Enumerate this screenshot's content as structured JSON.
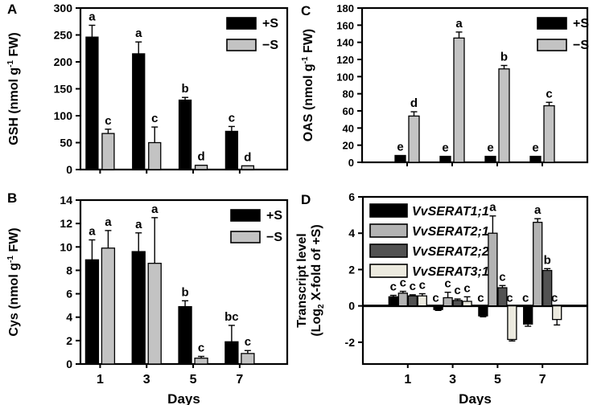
{
  "figure": {
    "background": "#ffffff",
    "panels": [
      {
        "letter": "A"
      },
      {
        "letter": "B"
      },
      {
        "letter": "C"
      },
      {
        "letter": "D"
      }
    ]
  },
  "chart_data": [
    {
      "panel": "A",
      "type": "bar",
      "ylabel": "GSH (nmol g^-1 FW)",
      "xlabel": "",
      "categories": [
        "1",
        "3",
        "5",
        "7"
      ],
      "show_x_tick_labels": false,
      "ylim": [
        0,
        300
      ],
      "yticks": [
        0,
        50,
        100,
        150,
        200,
        250,
        300
      ],
      "legend": {
        "position": "top-right",
        "italic": false
      },
      "series": [
        {
          "name": "+S",
          "color": "#000000",
          "values": [
            246,
            215,
            129,
            71
          ],
          "errors": [
            22,
            22,
            5,
            9
          ],
          "sig": [
            "a",
            "a",
            "b",
            "c"
          ]
        },
        {
          "name": "−S",
          "color": "#c3c3c3",
          "values": [
            67,
            50,
            8,
            7
          ],
          "errors": [
            8,
            29,
            0,
            0
          ],
          "sig": [
            "c",
            "c",
            "d",
            "d"
          ]
        }
      ]
    },
    {
      "panel": "B",
      "type": "bar",
      "ylabel": "Cys (nmol g^-1 FW)",
      "xlabel": "Days",
      "categories": [
        "1",
        "3",
        "5",
        "7"
      ],
      "show_x_tick_labels": true,
      "ylim": [
        0,
        14
      ],
      "yticks": [
        0,
        2,
        4,
        6,
        8,
        10,
        12,
        14
      ],
      "legend": {
        "position": "top-right",
        "italic": false
      },
      "series": [
        {
          "name": "+S",
          "color": "#000000",
          "values": [
            8.9,
            9.6,
            4.9,
            1.9
          ],
          "errors": [
            1.7,
            1.6,
            0.5,
            1.4
          ],
          "sig": [
            "a",
            "a",
            "b",
            "bc"
          ]
        },
        {
          "name": "−S",
          "color": "#c3c3c3",
          "values": [
            9.9,
            8.6,
            0.5,
            0.9
          ],
          "errors": [
            1.5,
            3.9,
            0.15,
            0.25
          ],
          "sig": [
            "a",
            "a",
            "c",
            "c"
          ]
        }
      ]
    },
    {
      "panel": "C",
      "type": "bar",
      "ylabel": "OAS (nmol g^-1 FW)",
      "xlabel": "",
      "categories": [
        "1",
        "3",
        "5",
        "7"
      ],
      "show_x_tick_labels": false,
      "ylim": [
        0,
        180
      ],
      "yticks": [
        0,
        20,
        40,
        60,
        80,
        100,
        120,
        140,
        160,
        180
      ],
      "legend": {
        "position": "top-right",
        "italic": false
      },
      "series": [
        {
          "name": "+S",
          "color": "#000000",
          "values": [
            8,
            7,
            7,
            7
          ],
          "errors": [
            0,
            0,
            0,
            0
          ],
          "sig": [
            "e",
            "e",
            "e",
            "e"
          ]
        },
        {
          "name": "−S",
          "color": "#c3c3c3",
          "values": [
            54,
            145,
            109,
            66
          ],
          "errors": [
            5,
            7,
            4,
            4
          ],
          "sig": [
            "d",
            "a",
            "b",
            "c"
          ]
        }
      ]
    },
    {
      "panel": "D",
      "type": "bar",
      "ylabel_lines": [
        "Transcript level",
        "(Log_2 X-fold of +S)"
      ],
      "xlabel": "Days",
      "categories": [
        "1",
        "3",
        "5",
        "7"
      ],
      "show_x_tick_labels": true,
      "ylim": [
        -3.2,
        6
      ],
      "yticks": [
        -2,
        0,
        2,
        4,
        6
      ],
      "legend": {
        "position": "top-left",
        "italic": true
      },
      "series": [
        {
          "name": "VvSERAT1;1",
          "color": "#000000",
          "values": [
            0.5,
            -0.2,
            -0.55,
            -1.0
          ],
          "errors": [
            0.08,
            0.05,
            0.05,
            0.12
          ],
          "sig": [
            "c",
            "c",
            "c",
            "c"
          ]
        },
        {
          "name": "VvSERAT2;1",
          "color": "#b3b3b3",
          "values": [
            0.7,
            0.45,
            4.0,
            4.6
          ],
          "errors": [
            0.1,
            0.3,
            0.95,
            0.2
          ],
          "sig": [
            "c",
            "c",
            "a",
            "a"
          ]
        },
        {
          "name": "VvSERAT2;2",
          "color": "#525252",
          "values": [
            0.55,
            0.3,
            1.0,
            1.95
          ],
          "errors": [
            0.06,
            0.08,
            0.12,
            0.1
          ],
          "sig": [
            "c",
            "c",
            "c",
            "b"
          ]
        },
        {
          "name": "VvSERAT3;1",
          "color": "#eceadf",
          "values": [
            0.55,
            0.25,
            -1.85,
            -0.75
          ],
          "errors": [
            0.12,
            0.25,
            0.08,
            0.3
          ],
          "sig": [
            "c",
            "c",
            "c",
            "c"
          ]
        }
      ]
    }
  ]
}
